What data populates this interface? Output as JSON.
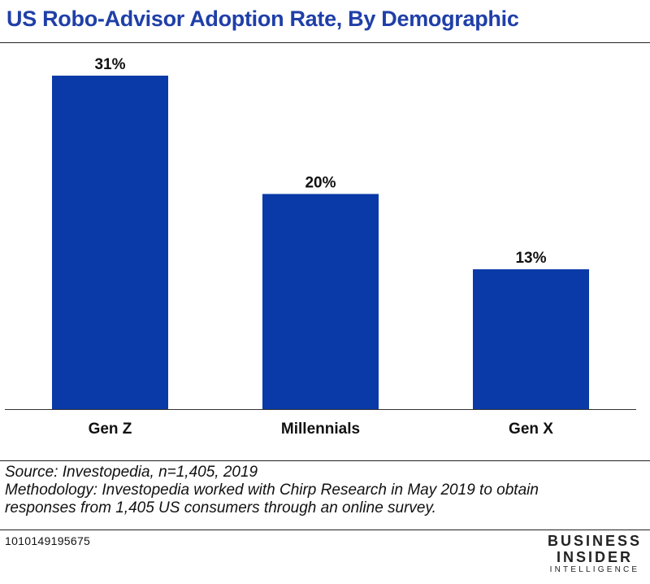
{
  "chart_data": {
    "type": "bar",
    "title": "US Robo-Advisor Adoption Rate, By Demographic",
    "categories": [
      "Gen Z",
      "Millennials",
      "Gen X"
    ],
    "values": [
      31,
      20,
      13
    ],
    "value_labels": [
      "31%",
      "20%",
      "13%"
    ],
    "xlabel": "",
    "ylabel": "",
    "ylim": [
      0,
      31
    ],
    "grid": false,
    "bar_color": "#0a3aa8"
  },
  "footnotes": {
    "source": "Source: Investopedia, n=1,405, 2019",
    "methodology_line1": "Methodology: Investopedia worked with Chirp Research in May 2019 to obtain",
    "methodology_line2": "responses from 1,405 US consumers through an online survey."
  },
  "chart_id": "1010149195675",
  "logo": {
    "line1": "BUSINESS",
    "line2": "INSIDER",
    "line3": "INTELLIGENCE"
  }
}
